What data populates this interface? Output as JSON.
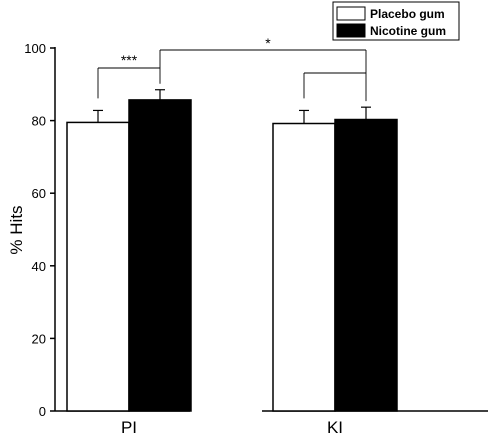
{
  "chart_data": {
    "type": "bar",
    "categories": [
      "PI",
      "KI"
    ],
    "series": [
      {
        "name": "Placebo gum",
        "values": [
          79.5,
          79.2
        ],
        "errors": [
          3.3,
          3.6
        ],
        "color": "#ffffff"
      },
      {
        "name": "Nicotine gum",
        "values": [
          85.7,
          80.3
        ],
        "errors": [
          2.8,
          3.4
        ],
        "color": "#000000"
      }
    ],
    "title": "",
    "xlabel": "",
    "ylabel": "% Hits",
    "ylim": [
      0,
      100
    ],
    "yticks": [
      "0",
      "20",
      "40",
      "60",
      "80",
      "100"
    ],
    "legend": "top-right",
    "grid": false,
    "significance": [
      "***",
      "*"
    ]
  }
}
